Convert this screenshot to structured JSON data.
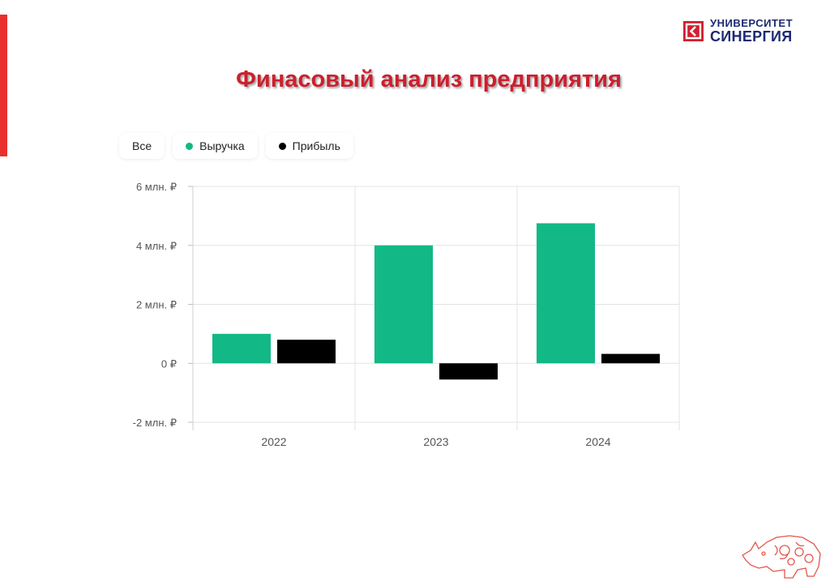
{
  "logo": {
    "line1": "УНИВЕРСИТЕТ",
    "line2": "СИНЕРГИЯ",
    "color": "#1d2a73",
    "mark_color": "#d0202f"
  },
  "page": {
    "title": "Финасовый анализ предприятия",
    "title_color": "#cc1f2d",
    "accent_stripe_color": "#e8312f"
  },
  "legend": {
    "all_label": "Все",
    "items": [
      {
        "label": "Выручка",
        "color": "#12b886"
      },
      {
        "label": "Прибыль",
        "color": "#000000"
      }
    ]
  },
  "chart_data": {
    "type": "bar",
    "categories": [
      "2022",
      "2023",
      "2024"
    ],
    "series": [
      {
        "name": "Выручка",
        "color": "#12b886",
        "values": [
          1.0,
          4.0,
          4.75
        ]
      },
      {
        "name": "Прибыль",
        "color": "#000000",
        "values": [
          0.8,
          -0.55,
          0.32
        ]
      }
    ],
    "ylim": [
      -2,
      6
    ],
    "yticks": [
      {
        "value": 6,
        "label": "6 млн. ₽"
      },
      {
        "value": 4,
        "label": "4 млн. ₽"
      },
      {
        "value": 2,
        "label": "2 млн. ₽"
      },
      {
        "value": 0,
        "label": "0 ₽"
      },
      {
        "value": -2,
        "label": "-2 млн. ₽"
      }
    ],
    "grid": true,
    "legend_position": "top-left"
  }
}
